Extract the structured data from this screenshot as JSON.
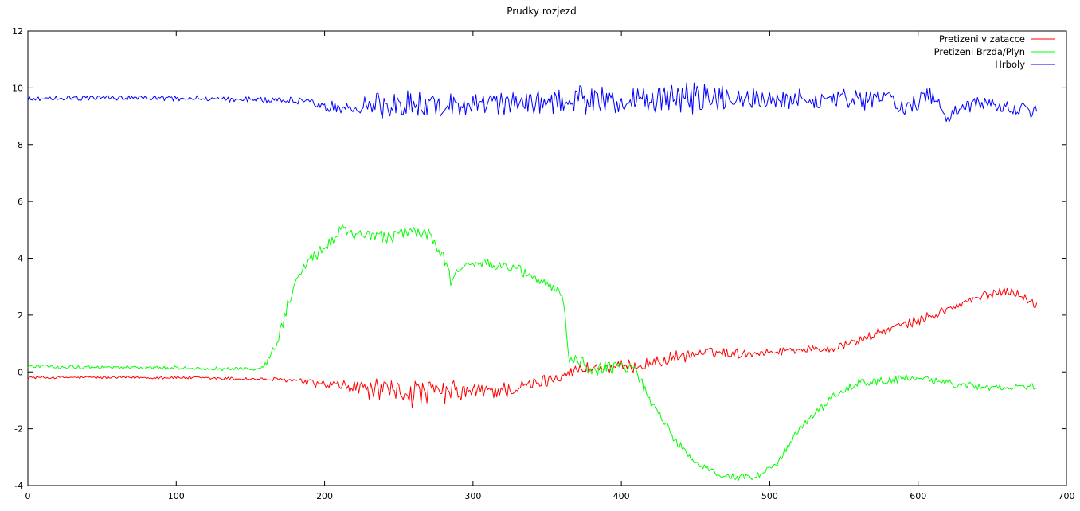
{
  "chart_data": {
    "type": "line",
    "title": "Prudky rozjezd",
    "xlabel": "",
    "ylabel": "",
    "xlim": [
      0,
      700
    ],
    "ylim": [
      -4,
      12
    ],
    "x_ticks": [
      0,
      100,
      200,
      300,
      400,
      500,
      600,
      700
    ],
    "y_ticks": [
      -4,
      -2,
      0,
      2,
      4,
      6,
      8,
      10,
      12
    ],
    "grid": false,
    "legend_position": "top-right",
    "sample_count": 680,
    "series": [
      {
        "name": "Pretizeni v zatacce",
        "color": "#ff0000",
        "keyframes": [
          [
            0,
            -0.2
          ],
          [
            100,
            -0.2
          ],
          [
            150,
            -0.25
          ],
          [
            180,
            -0.3
          ],
          [
            200,
            -0.45
          ],
          [
            230,
            -0.6
          ],
          [
            260,
            -0.75
          ],
          [
            300,
            -0.7
          ],
          [
            330,
            -0.6
          ],
          [
            350,
            -0.3
          ],
          [
            365,
            0.0
          ],
          [
            380,
            0.15
          ],
          [
            400,
            0.15
          ],
          [
            420,
            0.3
          ],
          [
            440,
            0.55
          ],
          [
            460,
            0.7
          ],
          [
            480,
            0.65
          ],
          [
            500,
            0.7
          ],
          [
            520,
            0.8
          ],
          [
            540,
            0.8
          ],
          [
            560,
            1.1
          ],
          [
            580,
            1.5
          ],
          [
            600,
            1.8
          ],
          [
            620,
            2.2
          ],
          [
            640,
            2.6
          ],
          [
            660,
            2.9
          ],
          [
            670,
            2.7
          ],
          [
            680,
            2.3
          ]
        ],
        "noise": [
          0.05,
          0.05,
          0.06,
          0.08,
          0.15,
          0.3,
          0.45,
          0.3,
          0.25,
          0.2,
          0.2,
          0.2,
          0.2,
          0.2,
          0.2,
          0.15,
          0.15,
          0.12,
          0.12,
          0.12,
          0.15,
          0.15,
          0.15,
          0.15,
          0.15,
          0.15,
          0.15,
          0.15
        ]
      },
      {
        "name": "Pretizeni Brzda/Plyn",
        "color": "#00ff00",
        "keyframes": [
          [
            0,
            0.2
          ],
          [
            80,
            0.15
          ],
          [
            155,
            0.1
          ],
          [
            160,
            0.25
          ],
          [
            168,
            1.0
          ],
          [
            175,
            2.3
          ],
          [
            185,
            3.6
          ],
          [
            200,
            4.4
          ],
          [
            212,
            5.0
          ],
          [
            225,
            4.8
          ],
          [
            240,
            4.7
          ],
          [
            255,
            4.9
          ],
          [
            270,
            4.9
          ],
          [
            280,
            4.0
          ],
          [
            285,
            3.2
          ],
          [
            295,
            3.9
          ],
          [
            310,
            3.8
          ],
          [
            330,
            3.6
          ],
          [
            350,
            3.1
          ],
          [
            360,
            2.8
          ],
          [
            365,
            0.5
          ],
          [
            380,
            0.1
          ],
          [
            400,
            0.2
          ],
          [
            410,
            0.0
          ],
          [
            420,
            -1.0
          ],
          [
            435,
            -2.3
          ],
          [
            450,
            -3.2
          ],
          [
            470,
            -3.7
          ],
          [
            490,
            -3.7
          ],
          [
            505,
            -3.2
          ],
          [
            520,
            -2.0
          ],
          [
            540,
            -1.0
          ],
          [
            560,
            -0.4
          ],
          [
            600,
            -0.2
          ],
          [
            640,
            -0.55
          ],
          [
            680,
            -0.5
          ]
        ],
        "noise": [
          0.06,
          0.06,
          0.06,
          0.1,
          0.15,
          0.2,
          0.2,
          0.2,
          0.18,
          0.2,
          0.2,
          0.2,
          0.2,
          0.2,
          0.2,
          0.15,
          0.15,
          0.15,
          0.15,
          0.15,
          0.25,
          0.2,
          0.2,
          0.15,
          0.15,
          0.15,
          0.1,
          0.1,
          0.1,
          0.15,
          0.15,
          0.15,
          0.15,
          0.12,
          0.12,
          0.12
        ]
      },
      {
        "name": "Hrboly",
        "color": "#0000ff",
        "keyframes": [
          [
            0,
            9.6
          ],
          [
            50,
            9.65
          ],
          [
            150,
            9.6
          ],
          [
            185,
            9.55
          ],
          [
            200,
            9.3
          ],
          [
            230,
            9.4
          ],
          [
            260,
            9.4
          ],
          [
            300,
            9.4
          ],
          [
            350,
            9.5
          ],
          [
            380,
            9.6
          ],
          [
            420,
            9.55
          ],
          [
            450,
            9.6
          ],
          [
            480,
            9.6
          ],
          [
            500,
            9.55
          ],
          [
            540,
            9.6
          ],
          [
            570,
            9.55
          ],
          [
            580,
            9.7
          ],
          [
            590,
            9.2
          ],
          [
            610,
            9.8
          ],
          [
            620,
            9.0
          ],
          [
            640,
            9.5
          ],
          [
            660,
            9.3
          ],
          [
            680,
            9.2
          ]
        ],
        "noise": [
          0.08,
          0.08,
          0.1,
          0.12,
          0.2,
          0.35,
          0.45,
          0.35,
          0.4,
          0.45,
          0.4,
          0.5,
          0.35,
          0.3,
          0.3,
          0.3,
          0.25,
          0.3,
          0.3,
          0.25,
          0.25,
          0.25,
          0.25
        ]
      }
    ]
  }
}
